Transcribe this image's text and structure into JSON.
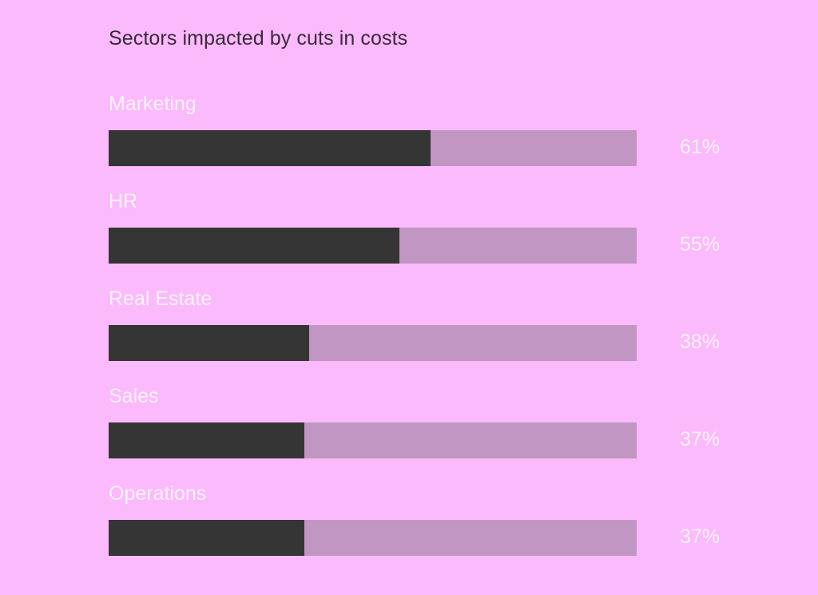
{
  "chart_data": {
    "type": "bar",
    "orientation": "horizontal",
    "title": "Sectors impacted by cuts in costs",
    "xlabel": "",
    "ylabel": "",
    "xlim": [
      0,
      100
    ],
    "grid": false,
    "legend": "none",
    "categories": [
      "Marketing",
      "HR",
      "Real Estate",
      "Sales",
      "Operations"
    ],
    "values": [
      61,
      55,
      38,
      37,
      37
    ],
    "value_labels": [
      "61%",
      "55%",
      "38%",
      "37%",
      "37%"
    ],
    "unit": "%"
  },
  "colors": {
    "background": "#fbbafc",
    "bar_fill": "#353535",
    "bar_track": "#c196c2",
    "title_text": "#3a2a3c",
    "label_text": "#fff2fd"
  }
}
